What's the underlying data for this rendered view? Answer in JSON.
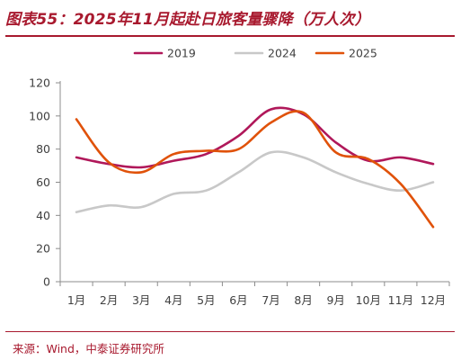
{
  "figure_title": "图表55：2025年11月起赴日旅客量骤降（万人次）",
  "source_note": "来源：Wind，中泰证券研究所",
  "colors": {
    "title": "#a8192e",
    "axis": "#8c8c8c",
    "tick_text": "#404040"
  },
  "chart_data": {
    "type": "line",
    "categories": [
      "1月",
      "2月",
      "3月",
      "4月",
      "5月",
      "6月",
      "7月",
      "8月",
      "9月",
      "10月",
      "11月",
      "12月"
    ],
    "ylim": [
      0,
      120
    ],
    "yticks": [
      0,
      20,
      40,
      60,
      80,
      100,
      120
    ],
    "legend_position": "top",
    "grid": false,
    "series": [
      {
        "name": "2019",
        "color": "#b0185a",
        "values": [
          75,
          71,
          69,
          73,
          77,
          88,
          104,
          101,
          84,
          73,
          75,
          71
        ]
      },
      {
        "name": "2024",
        "color": "#c8c8c8",
        "values": [
          42,
          46,
          45,
          53,
          55,
          66,
          78,
          75,
          66,
          59,
          55,
          60
        ]
      },
      {
        "name": "2025",
        "color": "#e0520a",
        "values": [
          98,
          72,
          66,
          77,
          79,
          80,
          96,
          102,
          78,
          74,
          59,
          33
        ]
      }
    ]
  }
}
